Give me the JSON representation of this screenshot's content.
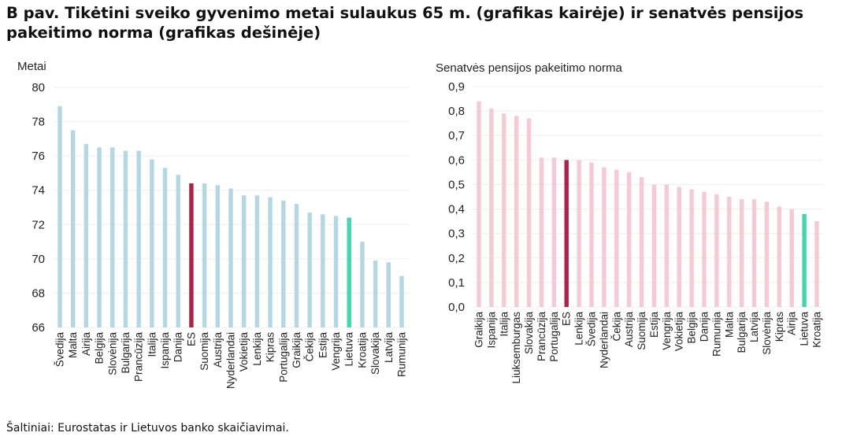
{
  "title": "B pav. Tikėtini sveiko gyvenimo metai sulaukus 65 m. (grafikas kairėje) ir senatvės pensijos pakeitimo norma (grafikas dešinėje)",
  "source": "Šaltiniai: Eurostatas ir Lietuvos banko skaičiavimai.",
  "chart_data": [
    {
      "type": "bar",
      "ylabel": "Metai",
      "ylim": [
        66,
        80
      ],
      "yticks": [
        "66",
        "68",
        "70",
        "72",
        "74",
        "76",
        "78",
        "80"
      ],
      "grid": true,
      "colors": {
        "default": "#b3d7e3",
        "ES": "#b01f45",
        "Lietuva": "#3fd6b0"
      },
      "categories": [
        "Švedija",
        "Malta",
        "Airija",
        "Belgija",
        "Slovėnija",
        "Bulgarija",
        "Prancūzija",
        "Italija",
        "Ispanija",
        "Danija",
        "ES",
        "Suomija",
        "Austrija",
        "Nyderlandai",
        "Vokietija",
        "Lenkija",
        "Kipras",
        "Portugalija",
        "Graikija",
        "Čekija",
        "Estija",
        "Vengrija",
        "Lietuva",
        "Kroatija",
        "Slovakija",
        "Latvija",
        "Rumunija"
      ],
      "values": [
        78.9,
        77.5,
        76.7,
        76.5,
        76.5,
        76.3,
        76.3,
        75.8,
        75.3,
        74.9,
        74.4,
        74.4,
        74.3,
        74.1,
        73.7,
        73.7,
        73.6,
        73.4,
        73.2,
        72.7,
        72.6,
        72.5,
        72.4,
        71.0,
        69.9,
        69.8,
        69.0
      ]
    },
    {
      "type": "bar",
      "ylabel": "Senatvės pensijos pakeitimo norma",
      "ylim": [
        0,
        0.9
      ],
      "yticks": [
        "0,0",
        "0,1",
        "0,2",
        "0,3",
        "0,4",
        "0,5",
        "0,6",
        "0,7",
        "0,8",
        "0,9"
      ],
      "grid": true,
      "colors": {
        "default": "#f5cad6",
        "ES": "#b01f45",
        "Lietuva": "#3fd6b0"
      },
      "categories": [
        "Graikija",
        "Ispanija",
        "Italija",
        "Liuksemburgas",
        "Slovakija",
        "Prancūzija",
        "Portugalija",
        "ES",
        "Lenkija",
        "Švedija",
        "Nyderlandai",
        "Čekija",
        "Austrija",
        "Suomija",
        "Estija",
        "Vengrija",
        "Vokietija",
        "Belgija",
        "Danija",
        "Rumunija",
        "Malta",
        "Bulgarija",
        "Latvija",
        "Slovėnija",
        "Kipras",
        "Airija",
        "Lietuva",
        "Kroatija"
      ],
      "values": [
        0.84,
        0.81,
        0.79,
        0.78,
        0.77,
        0.61,
        0.61,
        0.6,
        0.6,
        0.59,
        0.57,
        0.56,
        0.55,
        0.53,
        0.5,
        0.5,
        0.49,
        0.48,
        0.47,
        0.46,
        0.45,
        0.44,
        0.44,
        0.43,
        0.41,
        0.4,
        0.38,
        0.35
      ]
    }
  ]
}
